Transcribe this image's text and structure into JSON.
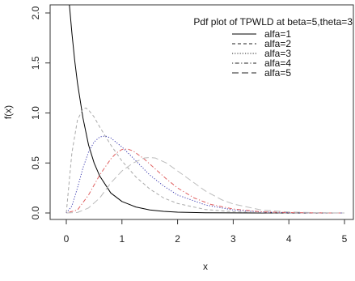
{
  "chart_data": {
    "type": "line",
    "title": "",
    "xlabel": "x",
    "ylabel": "f(x)",
    "xlim": [
      0,
      5
    ],
    "ylim": [
      0,
      2.0
    ],
    "x_ticks": [
      0,
      1,
      2,
      3,
      4,
      5
    ],
    "y_ticks": [
      0.0,
      0.5,
      1.0,
      1.5,
      2.0
    ],
    "x_tick_labels": [
      "0",
      "1",
      "2",
      "3",
      "4",
      "5"
    ],
    "y_tick_labels": [
      "0.0",
      "0.5",
      "1.0",
      "1.5",
      "2.0"
    ],
    "grid": false,
    "legend": {
      "placement": "top-right",
      "title": "Pdf plot of TPWLD at beta=5,theta=3"
    },
    "series": [
      {
        "name": "alfa=1",
        "color": "#000000",
        "dash": "solid",
        "x": [
          0,
          0.05,
          0.1,
          0.15,
          0.2,
          0.3,
          0.4,
          0.5,
          0.6,
          0.8,
          1.0,
          1.25,
          1.5,
          1.75,
          2.0,
          2.5,
          3.0,
          3.5,
          4.0,
          4.5,
          5.0
        ],
        "y": [
          2.5,
          2.12,
          1.8,
          1.53,
          1.3,
          0.95,
          0.68,
          0.5,
          0.37,
          0.2,
          0.115,
          0.06,
          0.03,
          0.016,
          0.008,
          0.002,
          0.0006,
          0.0002,
          0.0,
          0.0,
          0.0
        ]
      },
      {
        "name": "alfa=2",
        "color": "#aaaaaa",
        "dash": "dashed",
        "x": [
          0,
          0.05,
          0.1,
          0.2,
          0.3,
          0.35,
          0.4,
          0.5,
          0.6,
          0.8,
          1.0,
          1.25,
          1.5,
          1.75,
          2.0,
          2.5,
          3.0,
          3.5,
          4.0,
          4.5,
          5.0
        ],
        "y": [
          0,
          0.3,
          0.6,
          0.93,
          1.04,
          1.05,
          1.03,
          0.96,
          0.86,
          0.68,
          0.52,
          0.36,
          0.24,
          0.15,
          0.095,
          0.035,
          0.012,
          0.004,
          0.001,
          0.0,
          0.0
        ]
      },
      {
        "name": "alfa=3",
        "color": "#3b3bb0",
        "dash": "dotted",
        "x": [
          0,
          0.1,
          0.2,
          0.3,
          0.4,
          0.5,
          0.6,
          0.7,
          0.8,
          1.0,
          1.2,
          1.5,
          1.75,
          2.0,
          2.5,
          3.0,
          3.5,
          4.0,
          4.5,
          5.0
        ],
        "y": [
          0,
          0.07,
          0.25,
          0.45,
          0.61,
          0.71,
          0.76,
          0.77,
          0.75,
          0.66,
          0.55,
          0.38,
          0.27,
          0.18,
          0.08,
          0.03,
          0.01,
          0.003,
          0.001,
          0.0
        ]
      },
      {
        "name": "alfa=4",
        "color": "#e06060",
        "dash": "dotdash",
        "x": [
          0,
          0.2,
          0.4,
          0.6,
          0.8,
          0.9,
          1.0,
          1.1,
          1.2,
          1.4,
          1.6,
          1.8,
          2.0,
          2.3,
          2.6,
          3.0,
          3.5,
          4.0,
          4.5,
          5.0
        ],
        "y": [
          0,
          0.03,
          0.18,
          0.38,
          0.54,
          0.6,
          0.635,
          0.64,
          0.62,
          0.54,
          0.44,
          0.34,
          0.25,
          0.15,
          0.085,
          0.04,
          0.012,
          0.004,
          0.001,
          0.0
        ]
      },
      {
        "name": "alfa=5",
        "color": "#bbbbbb",
        "dash": "longdash",
        "x": [
          0,
          0.2,
          0.4,
          0.6,
          0.8,
          1.0,
          1.2,
          1.4,
          1.5,
          1.6,
          1.8,
          2.0,
          2.2,
          2.5,
          2.8,
          3.0,
          3.5,
          4.0,
          4.5,
          5.0
        ],
        "y": [
          0,
          0.005,
          0.05,
          0.15,
          0.3,
          0.42,
          0.5,
          0.55,
          0.555,
          0.55,
          0.5,
          0.42,
          0.34,
          0.22,
          0.13,
          0.09,
          0.03,
          0.01,
          0.003,
          0.0
        ]
      }
    ]
  }
}
